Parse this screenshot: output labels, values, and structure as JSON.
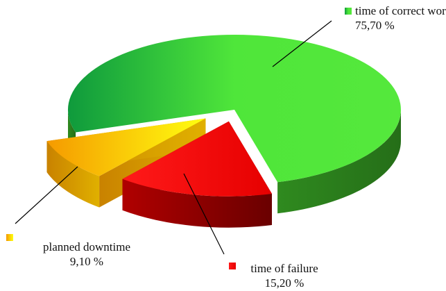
{
  "chart_data": {
    "type": "pie",
    "categories": [
      "time of failure",
      "planned downtime",
      "time of correct work"
    ],
    "values": [
      15.2,
      9.1,
      75.7
    ],
    "value_labels": [
      "15,20 %",
      "9,10 %",
      "75,70 %"
    ],
    "colors": [
      "#ff0000",
      "#ffd400",
      "#4ee53a"
    ]
  }
}
